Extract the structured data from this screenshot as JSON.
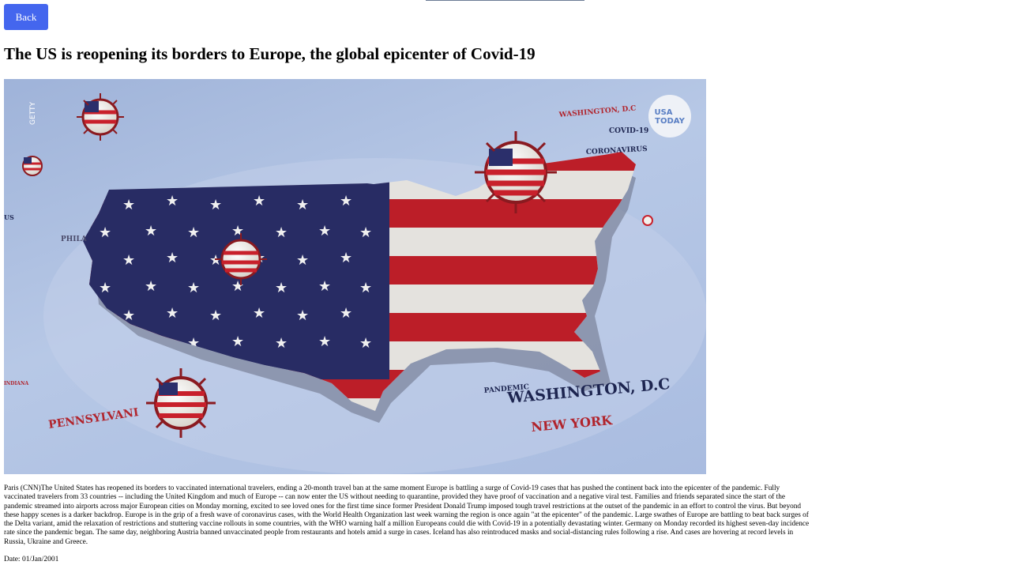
{
  "nav": {
    "back_label": "Back"
  },
  "article": {
    "title": "The US is reopening its borders to Europe, the global epicenter of Covid-19",
    "body": "Paris (CNN)The United States has reopened its borders to vaccinated international travelers, ending a 20-month travel ban at the same moment Europe is battling a surge of Covid-19 cases that has pushed the continent back into the epicenter of the pandemic. Fully vaccinated travelers from 33 countries -- including the United Kingdom and much of Europe -- can now enter the US without needing to quarantine, provided they have proof of vaccination and a negative viral test. Families and friends separated since the start of the pandemic streamed into airports across major European cities on Monday morning, excited to see loved ones for the first time since former President Donald Trump imposed tough travel restrictions at the outset of the pandemic in an effort to control the virus. But beyond these happy scenes is a darker backdrop. Europe is in the grip of a fresh wave of coronavirus cases, with the World Health Organization last week warning the region is once again \"at the epicenter\" of the pandemic. Large swathes of Europe are battling to beat back surges of the Delta variant, amid the relaxation of restrictions and stuttering vaccine rollouts in some countries, with the WHO warning half a million Europeans could die with Covid-19 in a potentially devastating winter. Germany on Monday recorded its highest seven-day incidence rate since the pandemic began. The same day, neighboring Austria banned unvaccinated people from restaurants and hotels amid a surge in cases. Iceland has also reintroduced masks and social-distancing rules following a rise. And cases are hovering at record levels in Russia, Ukraine and Greece.",
    "date": "Date: 01/Jan/2001"
  },
  "image": {
    "credit": "GETTY",
    "badge_line1": "USA",
    "badge_line2": "TODAY",
    "labels": {
      "washington_small": "WASHINGTON, D.C",
      "covid19": "COVID-19",
      "coronavirus": "CORONAVIRUS",
      "us": "US",
      "phila": "PHILA",
      "indiana": "INDIANA",
      "pennsylvania": "PENNSYLVANI",
      "pandemic": "PANDEMIC",
      "washington_large": "WASHINGTON, D.C",
      "new_york": "NEW YORK"
    },
    "colors": {
      "flag_red": "#c8202b",
      "flag_blue": "#2b2f6b",
      "flag_white": "#f3f1ec",
      "label_red": "#b1242c",
      "label_navy": "#1d2550"
    }
  }
}
